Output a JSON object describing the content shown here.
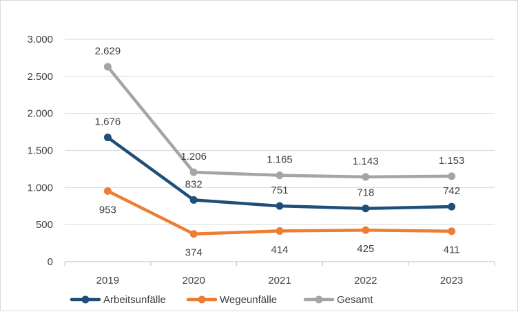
{
  "chart_data": {
    "type": "line",
    "title": "",
    "xlabel": "",
    "ylabel": "",
    "categories": [
      "2019",
      "2020",
      "2021",
      "2022",
      "2023"
    ],
    "ylim": [
      0,
      3000
    ],
    "yticks": [
      0,
      500,
      1000,
      1500,
      2000,
      2500,
      3000
    ],
    "ytick_labels": [
      "0",
      "500",
      "1.000",
      "1.500",
      "2.000",
      "2.500",
      "3.000"
    ],
    "grid": true,
    "legend_position": "bottom-left",
    "series": [
      {
        "name": "Arbeitsunfälle",
        "color": "#1f4e79",
        "values": [
          1676,
          832,
          751,
          718,
          742
        ],
        "labels": [
          "1.676",
          "832",
          "751",
          "718",
          "742"
        ],
        "label_position": [
          "above",
          "above",
          "above",
          "above",
          "above"
        ]
      },
      {
        "name": "Wegeunfälle",
        "color": "#ed7d31",
        "values": [
          953,
          374,
          414,
          425,
          411
        ],
        "labels": [
          "953",
          "374",
          "414",
          "425",
          "411"
        ],
        "label_position": [
          "below",
          "below",
          "below",
          "below",
          "below"
        ]
      },
      {
        "name": "Gesamt",
        "color": "#a5a5a5",
        "values": [
          2629,
          1206,
          1165,
          1143,
          1153
        ],
        "labels": [
          "2.629",
          "1.206",
          "1.165",
          "1.143",
          "1.153"
        ],
        "label_position": [
          "above",
          "above",
          "above",
          "above",
          "above"
        ]
      }
    ]
  }
}
